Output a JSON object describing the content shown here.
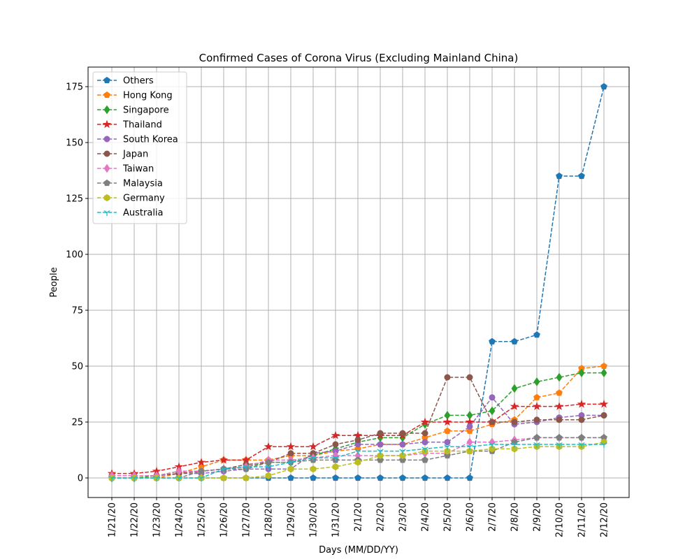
{
  "chart_data": {
    "type": "line",
    "title": "Confirmed Cases of Corona Virus (Excluding Mainland China)",
    "x_label": "Days (MM/DD/YY)",
    "y_label": "People",
    "categories": [
      "1/21/20",
      "1/22/20",
      "1/23/20",
      "1/24/20",
      "1/25/20",
      "1/26/20",
      "1/27/20",
      "1/28/20",
      "1/29/20",
      "1/30/20",
      "1/31/20",
      "2/1/20",
      "2/2/20",
      "2/3/20",
      "2/4/20",
      "2/5/20",
      "2/6/20",
      "2/7/20",
      "2/8/20",
      "2/9/20",
      "2/10/20",
      "2/11/20",
      "2/12/20"
    ],
    "ylim": [
      -8.75,
      183.75
    ],
    "yticks": [
      0,
      25,
      50,
      75,
      100,
      125,
      150,
      175
    ],
    "grid": true,
    "legend": "upper-left",
    "line_style": "dashed",
    "series": [
      {
        "name": "Others",
        "color": "#1f77b4",
        "marker": "pentagon",
        "values": [
          0,
          0,
          0,
          0,
          0,
          0,
          0,
          0,
          0,
          0,
          0,
          0,
          0,
          0,
          0,
          0,
          0,
          61,
          61,
          64,
          135,
          135,
          175
        ]
      },
      {
        "name": "Hong Kong",
        "color": "#ff7f0e",
        "marker": "pentagon",
        "values": [
          0,
          0,
          0,
          2,
          5,
          8,
          8,
          8,
          10,
          10,
          12,
          13,
          15,
          15,
          18,
          21,
          21,
          24,
          26,
          36,
          38,
          49,
          50
        ]
      },
      {
        "name": "Singapore",
        "color": "#2ca02c",
        "marker": "diamond",
        "values": [
          0,
          0,
          1,
          3,
          3,
          4,
          5,
          7,
          7,
          10,
          13,
          16,
          18,
          18,
          24,
          28,
          28,
          30,
          40,
          43,
          45,
          47,
          47
        ]
      },
      {
        "name": "Thailand",
        "color": "#d62728",
        "marker": "star",
        "values": [
          2,
          2,
          3,
          5,
          7,
          8,
          8,
          14,
          14,
          14,
          19,
          19,
          19,
          19,
          25,
          25,
          25,
          25,
          32,
          32,
          32,
          33,
          33
        ]
      },
      {
        "name": "South Korea",
        "color": "#9467bd",
        "marker": "circle",
        "values": [
          1,
          1,
          1,
          2,
          2,
          3,
          4,
          4,
          4,
          11,
          12,
          15,
          15,
          15,
          16,
          16,
          23,
          36,
          24,
          25,
          27,
          28,
          28
        ]
      },
      {
        "name": "Japan",
        "color": "#8c564b",
        "marker": "circle",
        "values": [
          1,
          1,
          1,
          2,
          3,
          4,
          6,
          7,
          11,
          11,
          15,
          17,
          20,
          20,
          20,
          45,
          45,
          25,
          25,
          26,
          26,
          26,
          28
        ]
      },
      {
        "name": "Taiwan",
        "color": "#e377c2",
        "marker": "diamond",
        "values": [
          1,
          1,
          1,
          3,
          3,
          4,
          5,
          8,
          8,
          9,
          10,
          10,
          10,
          10,
          11,
          11,
          16,
          16,
          17,
          18,
          18,
          18,
          18
        ]
      },
      {
        "name": "Malaysia",
        "color": "#7f7f7f",
        "marker": "pentagon",
        "values": [
          0,
          0,
          0,
          0,
          3,
          4,
          4,
          7,
          7,
          8,
          8,
          8,
          8,
          8,
          8,
          10,
          12,
          12,
          16,
          18,
          18,
          18,
          18
        ]
      },
      {
        "name": "Germany",
        "color": "#bcbd22",
        "marker": "hexagon",
        "values": [
          0,
          0,
          0,
          0,
          0,
          0,
          0,
          1,
          4,
          4,
          5,
          7,
          10,
          10,
          12,
          12,
          12,
          13,
          13,
          14,
          14,
          14,
          16
        ]
      },
      {
        "name": "Australia",
        "color": "#17becf",
        "marker": "tri",
        "values": [
          0,
          0,
          0,
          0,
          0,
          4,
          5,
          5,
          7,
          9,
          9,
          12,
          12,
          12,
          13,
          14,
          14,
          15,
          15,
          15,
          15,
          15,
          15
        ]
      }
    ]
  }
}
